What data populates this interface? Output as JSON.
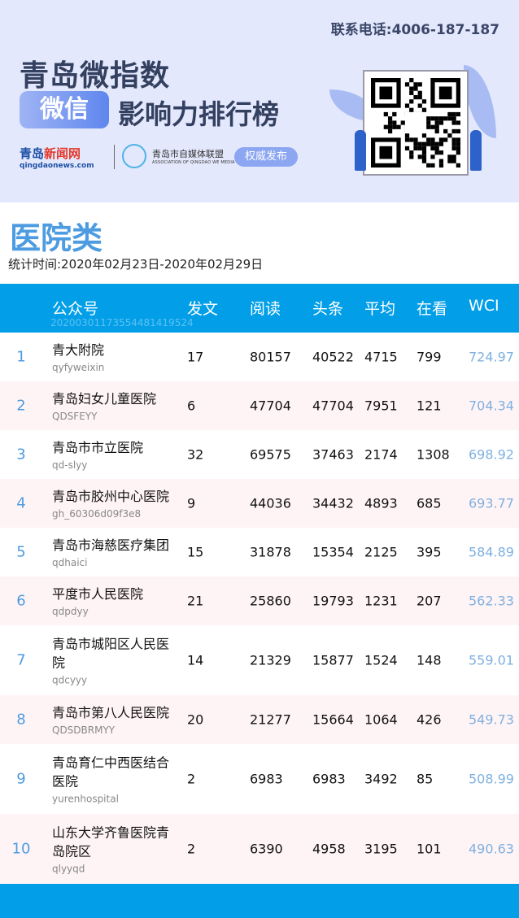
{
  "banner": {
    "phone": "联系电话:4006-187-187",
    "title_line1": "青岛微指数",
    "badge": "微信",
    "title_line2": "影响力排行榜",
    "logo_news": "青岛",
    "logo_news_red": "新闻网",
    "logo_news_url": "qingdaonews.com",
    "assoc_name": "青岛市自媒体联盟",
    "assoc_en": "ASSOCIATION OF QINGDAO WE MEDIA",
    "auth_button": "权威发布"
  },
  "category": "医院类",
  "period": "统计时间:2020年02月23日-2020年02月29日",
  "table": {
    "headers": [
      "公众号",
      "发文",
      "阅读",
      "头条",
      "平均",
      "在看",
      "WCI"
    ],
    "stamp": "20200301173554481419524",
    "rows": [
      {
        "rank": "1",
        "name": "青大附院",
        "id": "qyfyweixin",
        "posts": "17",
        "reads": "80157",
        "top": "40522",
        "avg": "4715",
        "watching": "799",
        "wci": "724.97"
      },
      {
        "rank": "2",
        "name": "青岛妇女儿童医院",
        "id": "QDSFEYY",
        "posts": "6",
        "reads": "47704",
        "top": "47704",
        "avg": "7951",
        "watching": "121",
        "wci": "704.34"
      },
      {
        "rank": "3",
        "name": "青岛市市立医院",
        "id": "qd-slyy",
        "posts": "32",
        "reads": "69575",
        "top": "37463",
        "avg": "2174",
        "watching": "1308",
        "wci": "698.92"
      },
      {
        "rank": "4",
        "name": "青岛市胶州中心医院",
        "id": "gh_60306d09f3e8",
        "posts": "9",
        "reads": "44036",
        "top": "34432",
        "avg": "4893",
        "watching": "685",
        "wci": "693.77"
      },
      {
        "rank": "5",
        "name": "青岛市海慈医疗集团",
        "id": "qdhaici",
        "posts": "15",
        "reads": "31878",
        "top": "15354",
        "avg": "2125",
        "watching": "395",
        "wci": "584.89"
      },
      {
        "rank": "6",
        "name": "平度市人民医院",
        "id": "qdpdyy",
        "posts": "21",
        "reads": "25860",
        "top": "19793",
        "avg": "1231",
        "watching": "207",
        "wci": "562.33"
      },
      {
        "rank": "7",
        "name": "青岛市城阳区人民医院",
        "id": "qdcyyy",
        "posts": "14",
        "reads": "21329",
        "top": "15877",
        "avg": "1524",
        "watching": "148",
        "wci": "559.01"
      },
      {
        "rank": "8",
        "name": "青岛市第八人民医院",
        "id": "QDSDBRMYY",
        "posts": "20",
        "reads": "21277",
        "top": "15664",
        "avg": "1064",
        "watching": "426",
        "wci": "549.73"
      },
      {
        "rank": "9",
        "name": "青岛育仁中西医结合医院",
        "id": "yurenhospital",
        "posts": "2",
        "reads": "6983",
        "top": "6983",
        "avg": "3492",
        "watching": "85",
        "wci": "508.99"
      },
      {
        "rank": "10",
        "name": "山东大学齐鲁医院青岛院区",
        "id": "qlyyqd",
        "posts": "2",
        "reads": "6390",
        "top": "4958",
        "avg": "3195",
        "watching": "101",
        "wci": "490.63"
      }
    ]
  },
  "colors": {
    "header_blue": "#029fe8",
    "title_blue": "#4d9be0",
    "wci": "#7fb0e0",
    "alt_row": "#fff4f5"
  }
}
